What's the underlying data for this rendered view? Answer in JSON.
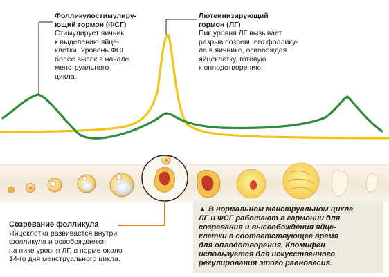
{
  "fsh": {
    "title": "Фолликулостимулиру-\nющий гормон (ФСГ)",
    "text": "Стимулирует яичник\nк выделению яйце-\nклетки. Уровень ФСГ\nболее высок в начале\nменструального\nцикла."
  },
  "lh": {
    "title": "Лютеинизирующий\nгормон (ЛГ)",
    "text": "Пик уровня ЛГ вызывает\nразрыв созревшего фоллику-\nла в яичнике, освобождая\nяйцеклетку, готовую\nк оплодотворению."
  },
  "follicle": {
    "title": "Созревание фолликула",
    "text": "Яйцеклетка развивается внутри\nфолликула и освобождается\nна пике уровня ЛГ, в норме около\n14-го дня менструального цикла."
  },
  "info": {
    "marker": "▲",
    "text": " В нормальном менструальном цикле\nЛГ и ФСГ работают в гармонии для\nсозревания и высвобождения яйце-\nклетки в соответствующее время\nдля оплодотворения. Кломифен\nиспользуется для искусственного\nрегулирования этого равновесия."
  },
  "colors": {
    "fsh_curve": "#2e8b3a",
    "lh_curve": "#f2c21b",
    "band": "#f4ede0",
    "pointer": "#d9822b",
    "info_bg": "#efeadf"
  }
}
